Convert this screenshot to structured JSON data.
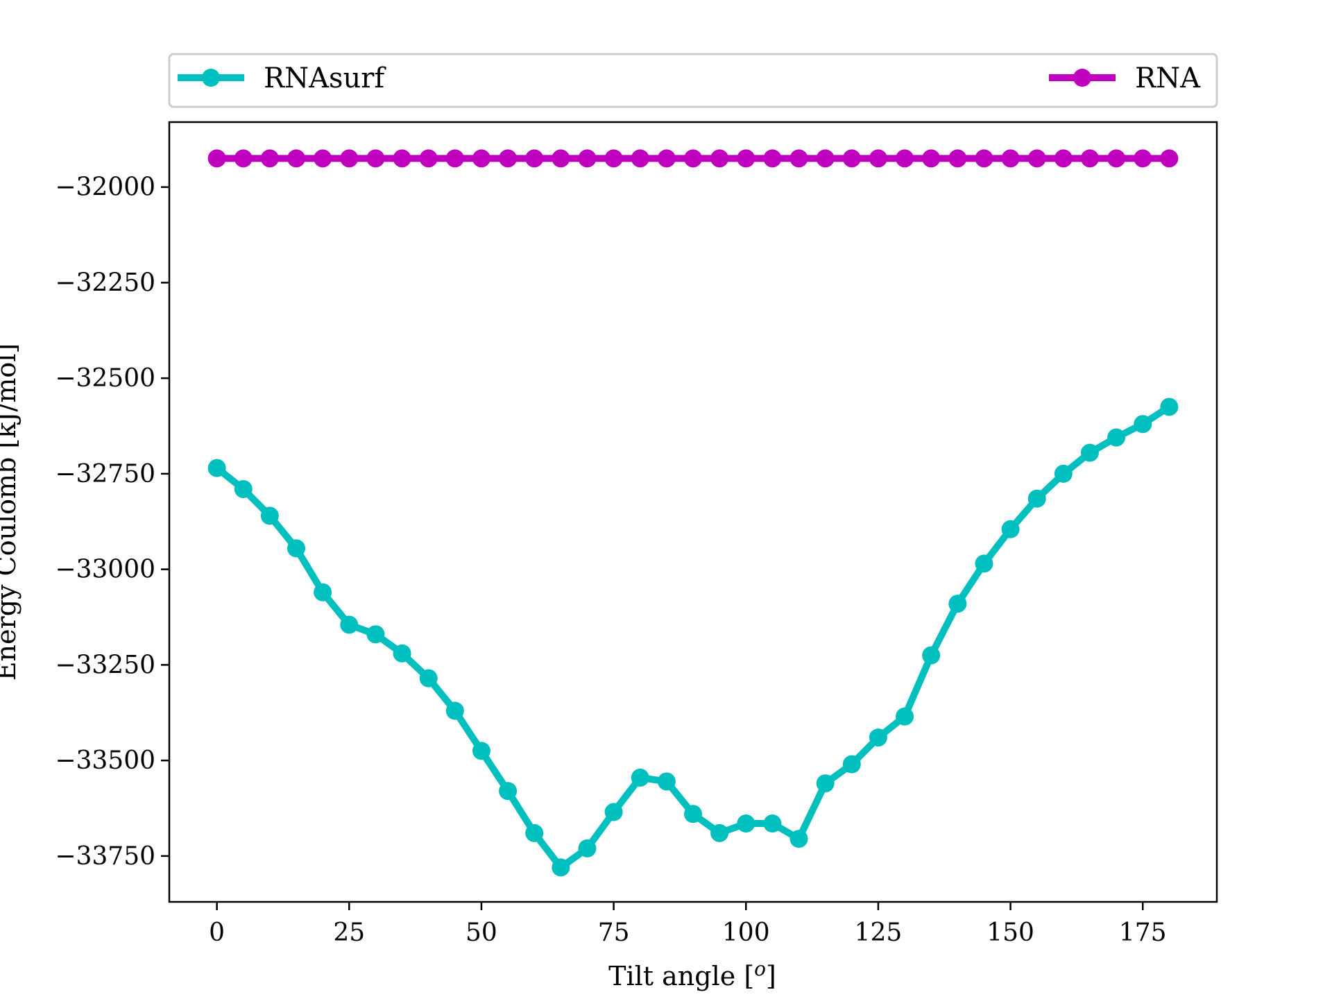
{
  "chart_data": {
    "type": "line",
    "xlabel": "Tilt angle [",
    "xlabel_sup": "o",
    "xlabel_end": "]",
    "ylabel": "Energy Coulomb [kJ/mol]",
    "xlim": [
      -9,
      189
    ],
    "ylim": [
      -33870,
      -31830
    ],
    "xticks": [
      0,
      25,
      50,
      75,
      100,
      125,
      150,
      175
    ],
    "yticks": [
      -32000,
      -32250,
      -32500,
      -32750,
      -33000,
      -33250,
      -33500,
      -33750
    ],
    "xtick_labels": [
      "0",
      "25",
      "50",
      "75",
      "100",
      "125",
      "150",
      "175"
    ],
    "ytick_labels": [
      "−32000",
      "−32250",
      "−32500",
      "−32750",
      "−33000",
      "−33250",
      "−33500",
      "−33750"
    ],
    "grid": false,
    "legend_placement": "above plot, expanded",
    "x": [
      0,
      5,
      10,
      15,
      20,
      25,
      30,
      35,
      40,
      45,
      50,
      55,
      60,
      65,
      70,
      75,
      80,
      85,
      90,
      95,
      100,
      105,
      110,
      115,
      120,
      125,
      130,
      135,
      140,
      145,
      150,
      155,
      160,
      165,
      170,
      175,
      180
    ],
    "series": [
      {
        "name": "RNAsurf",
        "color": "#00bfbf",
        "values": [
          -32735,
          -32790,
          -32860,
          -32945,
          -33060,
          -33145,
          -33170,
          -33220,
          -33285,
          -33370,
          -33475,
          -33580,
          -33690,
          -33780,
          -33730,
          -33635,
          -33545,
          -33555,
          -33640,
          -33690,
          -33665,
          -33665,
          -33705,
          -33560,
          -33510,
          -33440,
          -33385,
          -33225,
          -33090,
          -32985,
          -32895,
          -32815,
          -32750,
          -32695,
          -32655,
          -32620,
          -32575
        ]
      },
      {
        "name": "RNA",
        "color": "#bf00bf",
        "values": [
          -31925,
          -31925,
          -31925,
          -31925,
          -31925,
          -31925,
          -31925,
          -31925,
          -31925,
          -31925,
          -31925,
          -31925,
          -31925,
          -31925,
          -31925,
          -31925,
          -31925,
          -31925,
          -31925,
          -31925,
          -31925,
          -31925,
          -31925,
          -31925,
          -31925,
          -31925,
          -31925,
          -31925,
          -31925,
          -31925,
          -31925,
          -31925,
          -31925,
          -31925,
          -31925,
          -31925,
          -31925
        ]
      }
    ]
  }
}
